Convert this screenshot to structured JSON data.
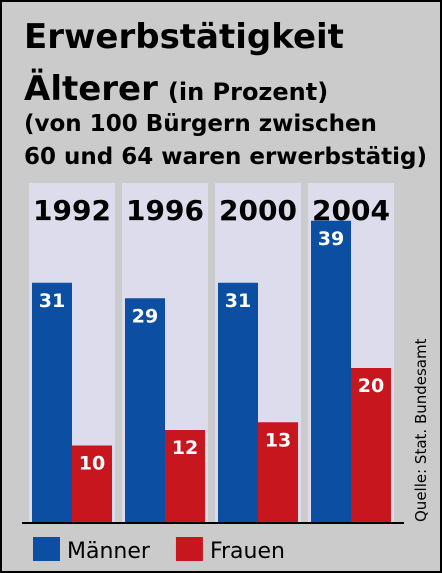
{
  "chart_data": {
    "type": "bar",
    "title": [
      "Erwerbstätigkeit",
      "Älterer"
    ],
    "unit_note": "(in Prozent)",
    "subtitle": [
      "(von 100 Bürgern zwischen",
      "60 und 64 waren erwerbstätig)"
    ],
    "categories": [
      "1992",
      "1996",
      "2000",
      "2004"
    ],
    "series": [
      {
        "name": "Männer",
        "color": "#0b4ea2",
        "values": [
          31,
          29,
          31,
          39
        ]
      },
      {
        "name": "Frauen",
        "color": "#c8161e",
        "values": [
          10,
          12,
          13,
          20
        ]
      }
    ],
    "source": "Quelle: Stat. Bundesamt"
  }
}
